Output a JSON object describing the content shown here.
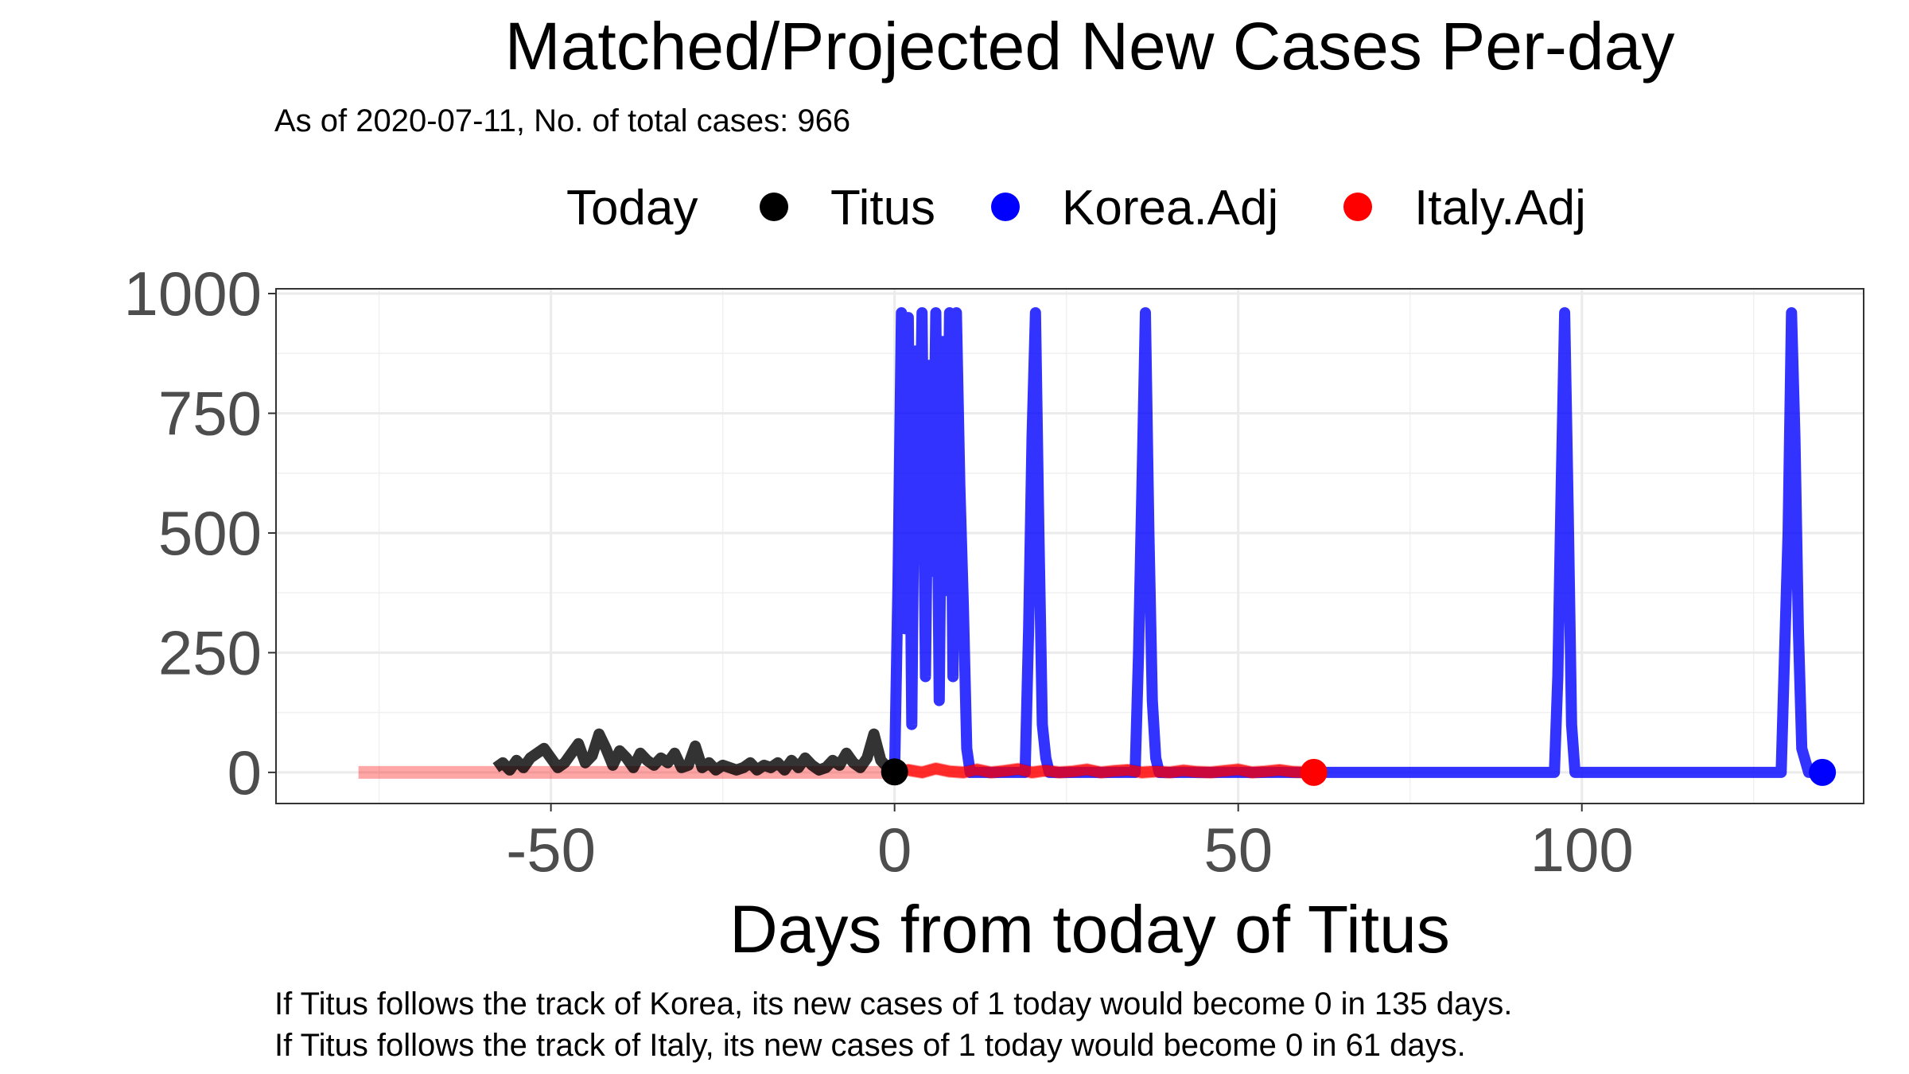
{
  "chart_data": {
    "type": "line",
    "title": "Matched/Projected New Cases Per-day",
    "subtitle": "As of 2020-07-11, No. of total cases: 966",
    "xlabel": "Days from today of Titus",
    "ylabel": "",
    "xlim": [
      -90,
      141
    ],
    "ylim": [
      -65,
      1010
    ],
    "x_ticks": [
      -50,
      0,
      50,
      100
    ],
    "x_tick_labels": [
      "-50",
      "0",
      "50",
      "100"
    ],
    "y_ticks": [
      0,
      250,
      500,
      750,
      1000
    ],
    "y_tick_labels": [
      "0",
      "250",
      "500",
      "750",
      "1000"
    ],
    "grid": true,
    "legend": {
      "position": "top",
      "title": "Today",
      "entries": [
        {
          "label": "Titus",
          "color": "#000000"
        },
        {
          "label": "Korea.Adj",
          "color": "#0000ff"
        },
        {
          "label": "Italy.Adj",
          "color": "#ff0000"
        }
      ]
    },
    "series": [
      {
        "name": "Titus",
        "color": "#000000",
        "x": [
          -58,
          -57,
          -56,
          -55,
          -54,
          -53,
          -52,
          -51,
          -50,
          -49,
          -48,
          -47,
          -46,
          -45,
          -44,
          -43,
          -42,
          -41,
          -40,
          -39,
          -38,
          -37,
          -36,
          -35,
          -34,
          -33,
          -32,
          -31,
          -30,
          -29,
          -28,
          -27,
          -26,
          -25,
          -24,
          -23,
          -22,
          -21,
          -20,
          -19,
          -18,
          -17,
          -16,
          -15,
          -14,
          -13,
          -12,
          -11,
          -10,
          -9,
          -8,
          -7,
          -6,
          -5,
          -4,
          -3,
          -2,
          -1,
          0
        ],
        "y": [
          10,
          20,
          5,
          25,
          10,
          30,
          40,
          50,
          30,
          10,
          20,
          40,
          60,
          20,
          35,
          80,
          50,
          15,
          45,
          30,
          10,
          40,
          25,
          15,
          30,
          20,
          40,
          10,
          15,
          55,
          10,
          20,
          5,
          15,
          10,
          5,
          10,
          20,
          5,
          15,
          10,
          20,
          5,
          25,
          10,
          30,
          15,
          5,
          10,
          25,
          15,
          40,
          20,
          10,
          30,
          80,
          25,
          10,
          1
        ]
      },
      {
        "name": "Korea.Adj",
        "color": "#0000ff",
        "x": [
          0,
          0.5,
          1,
          1.5,
          2,
          2.5,
          3,
          3.5,
          4,
          4.5,
          5,
          5.5,
          6,
          6.5,
          7,
          7.5,
          8,
          8.5,
          9,
          9.5,
          10,
          10.5,
          11,
          12,
          15,
          18,
          19,
          19.5,
          20,
          20.5,
          21,
          21.5,
          22,
          22.5,
          23,
          24,
          28,
          32,
          35,
          35.5,
          36,
          36.5,
          37,
          37.5,
          38,
          38.5,
          39,
          45,
          55,
          65,
          75,
          85,
          95,
          96,
          96.5,
          97,
          97.5,
          98,
          98.5,
          99,
          105,
          115,
          125,
          128,
          129,
          129.5,
          130,
          130.5,
          131,
          131.5,
          132,
          133,
          135
        ],
        "y": [
          0,
          400,
          960,
          300,
          950,
          100,
          880,
          500,
          960,
          200,
          850,
          420,
          960,
          150,
          900,
          380,
          960,
          200,
          960,
          600,
          350,
          50,
          0,
          0,
          0,
          0,
          0,
          300,
          700,
          960,
          500,
          100,
          30,
          0,
          0,
          0,
          0,
          0,
          0,
          250,
          600,
          960,
          500,
          150,
          30,
          0,
          0,
          0,
          0,
          0,
          0,
          0,
          0,
          0,
          200,
          600,
          960,
          550,
          100,
          0,
          0,
          0,
          0,
          0,
          0,
          250,
          500,
          960,
          700,
          300,
          50,
          0,
          0
        ]
      },
      {
        "name": "Italy.Adj",
        "color": "#ff0000",
        "x": [
          -78,
          -60,
          -40,
          -20,
          -5,
          0,
          2,
          4,
          6,
          8,
          10,
          12,
          14,
          16,
          18,
          20,
          22,
          24,
          26,
          28,
          30,
          32,
          34,
          36,
          38,
          40,
          42,
          44,
          46,
          48,
          50,
          52,
          54,
          56,
          58,
          60,
          61
        ],
        "y": [
          0,
          0,
          0,
          0,
          0,
          0,
          5,
          0,
          8,
          2,
          0,
          6,
          0,
          3,
          7,
          0,
          4,
          0,
          2,
          6,
          0,
          3,
          5,
          0,
          2,
          0,
          4,
          1,
          0,
          3,
          6,
          0,
          2,
          5,
          1,
          0,
          0
        ]
      }
    ],
    "points": [
      {
        "series": "Titus",
        "x": 0,
        "y": 1
      },
      {
        "series": "Korea.Adj",
        "x": 135,
        "y": 0
      },
      {
        "series": "Italy.Adj",
        "x": 61,
        "y": 0
      }
    ],
    "caption_lines": [
      "If Titus follows the track of Korea, its new cases of 1 today would become 0 in 135 days.",
      "If Titus follows the track of Italy, its new cases of 1 today would become 0 in 61 days."
    ]
  }
}
